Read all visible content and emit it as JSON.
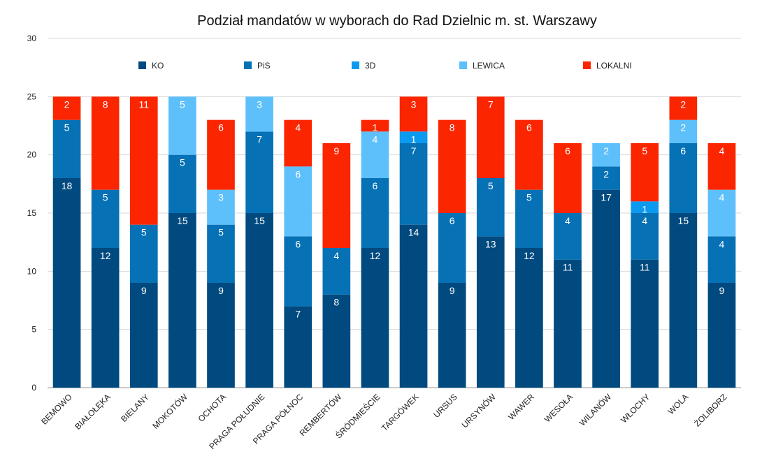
{
  "chart_data": {
    "type": "bar",
    "stacked": true,
    "title": "Podział mandatów w wyborach do Rad Dzielnic m. st. Warszawy",
    "xlabel": "",
    "ylabel": "",
    "ylim": [
      0,
      30
    ],
    "yticks": [
      0,
      5,
      10,
      15,
      20,
      25,
      30
    ],
    "grid": true,
    "legend_position": "top",
    "categories": [
      "BEMOWO",
      "BIAŁOŁĘKA",
      "BIELANY",
      "MOKOTÓW",
      "OCHOTA",
      "PRAGA POŁUDNIE",
      "PRAGA PÓŁNOC",
      "REMBERTÓW",
      "ŚRÓDMIEŚCIE",
      "TARGÓWEK",
      "URSUS",
      "URSYNÓW",
      "WAWER",
      "WESOŁA",
      "WILANÓW",
      "WŁOCHY",
      "WOLA",
      "ŻOLIBORZ"
    ],
    "series": [
      {
        "name": "KO",
        "color": "#004a7f",
        "values": [
          18,
          12,
          9,
          15,
          9,
          15,
          7,
          8,
          12,
          14,
          9,
          13,
          12,
          11,
          17,
          11,
          15,
          9
        ]
      },
      {
        "name": "PiS",
        "color": "#0671b5",
        "values": [
          5,
          5,
          5,
          5,
          5,
          7,
          6,
          4,
          6,
          7,
          6,
          5,
          5,
          4,
          2,
          4,
          6,
          4
        ]
      },
      {
        "name": "3D",
        "color": "#0b9af0",
        "values": [
          0,
          0,
          0,
          0,
          0,
          0,
          0,
          0,
          0,
          1,
          0,
          0,
          0,
          0,
          0,
          1,
          0,
          0
        ]
      },
      {
        "name": "LEWICA",
        "color": "#5ec0fa",
        "values": [
          0,
          0,
          0,
          5,
          3,
          3,
          6,
          0,
          4,
          0,
          0,
          0,
          0,
          0,
          2,
          0,
          2,
          4
        ]
      },
      {
        "name": "LOKALNI",
        "color": "#fb2500",
        "values": [
          2,
          8,
          11,
          0,
          6,
          0,
          4,
          9,
          1,
          3,
          8,
          7,
          6,
          6,
          0,
          5,
          2,
          4
        ]
      }
    ]
  }
}
